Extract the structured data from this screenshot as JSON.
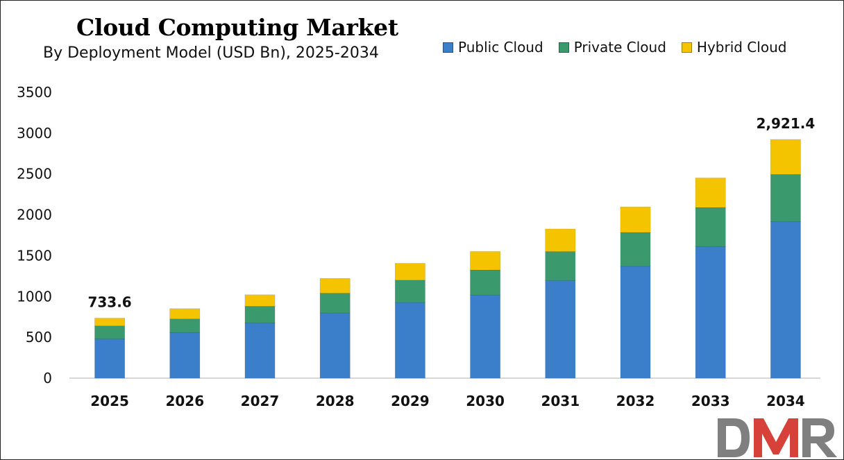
{
  "chart_data": {
    "type": "bar",
    "stacked": true,
    "title": "Cloud Computing Market",
    "subtitle": "By Deployment Model (USD Bn), 2025-2034",
    "categories": [
      "2025",
      "2026",
      "2027",
      "2028",
      "2029",
      "2030",
      "2031",
      "2032",
      "2033",
      "2034"
    ],
    "series": [
      {
        "name": "Public Cloud",
        "color": "#3b7ec9",
        "values": [
          480,
          560,
          675,
          800,
          925,
          1020,
          1195,
          1370,
          1610,
          1915
        ]
      },
      {
        "name": "Private Cloud",
        "color": "#3a9a6e",
        "values": [
          160,
          165,
          205,
          240,
          275,
          305,
          355,
          415,
          480,
          580
        ]
      },
      {
        "name": "Hybrid Cloud",
        "color": "#f5c400",
        "values": [
          93.6,
          125,
          140,
          180,
          205,
          225,
          275,
          310,
          360,
          426.4
        ]
      }
    ],
    "ylim": [
      0,
      3500
    ],
    "yticks": [
      0,
      500,
      1000,
      1500,
      2000,
      2500,
      3000,
      3500
    ],
    "data_labels": [
      {
        "category": "2025",
        "text": "733.6"
      },
      {
        "category": "2034",
        "text": "2,921.4"
      }
    ],
    "legend_position": "top-right",
    "grid": false
  },
  "logo_text": "DMR"
}
